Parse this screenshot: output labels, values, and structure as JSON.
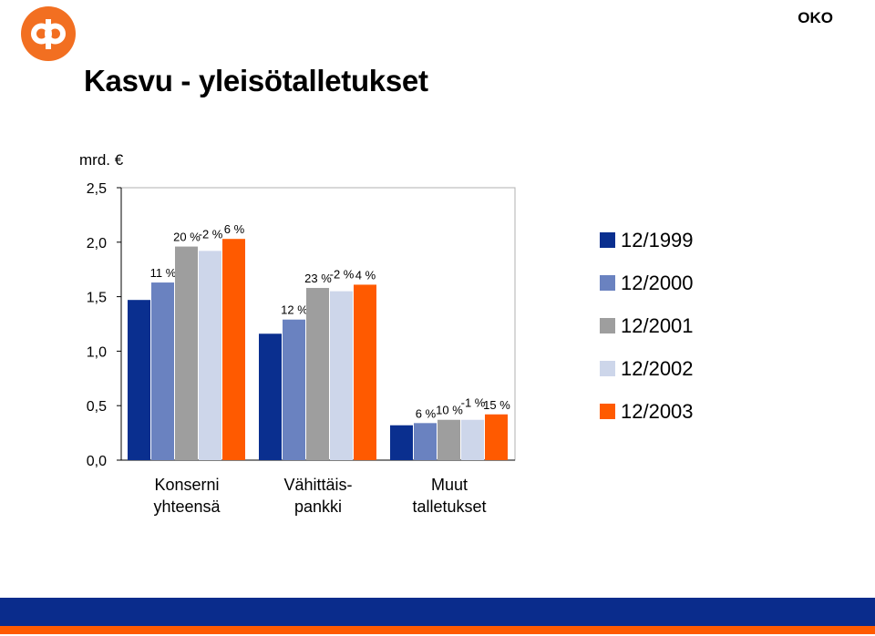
{
  "header": {
    "logo_name": "op-logo",
    "brand": "OKO",
    "title": "Kasvu - yleisötalletukset",
    "unit": "mrd. €"
  },
  "colors": {
    "logo": "#f26f21",
    "series": [
      "#0a2f8f",
      "#6a82c0",
      "#9e9e9e",
      "#cdd6ea",
      "#ff5a00"
    ],
    "footer_band": "#0a2c8c",
    "footer_line": "#ff5a00"
  },
  "chart_data": {
    "type": "bar",
    "categories": [
      "Konserni yhteensä",
      "Vähittäis-pankki",
      "Muut talletukset"
    ],
    "category_lines": [
      [
        "Konserni",
        "yhteensä"
      ],
      [
        "Vähittäis-",
        "pankki"
      ],
      [
        "Muut",
        "talletukset"
      ]
    ],
    "series": [
      {
        "name": "12/1999",
        "values": [
          1.47,
          1.16,
          0.32
        ],
        "labels": [
          "",
          "",
          ""
        ]
      },
      {
        "name": "12/2000",
        "values": [
          1.63,
          1.29,
          0.34
        ],
        "labels": [
          "11 %",
          "12 %",
          "6 %"
        ]
      },
      {
        "name": "12/2001",
        "values": [
          1.96,
          1.58,
          0.37
        ],
        "labels": [
          "20 %",
          "23 %",
          "10 %"
        ]
      },
      {
        "name": "12/2002",
        "values": [
          1.92,
          1.55,
          0.37
        ],
        "labels": [
          "-2 %",
          "-2 %",
          "-1 %"
        ]
      },
      {
        "name": "12/2003",
        "values": [
          2.03,
          1.61,
          0.42
        ],
        "labels": [
          "6 %",
          "4 %",
          "15 %"
        ]
      }
    ],
    "yticks": [
      "0,0",
      "0,5",
      "1,0",
      "1,5",
      "2,0",
      "2,5"
    ],
    "ylim": [
      0,
      2.5
    ],
    "ylabel": "mrd. €",
    "grid": false,
    "legend_position": "right"
  }
}
